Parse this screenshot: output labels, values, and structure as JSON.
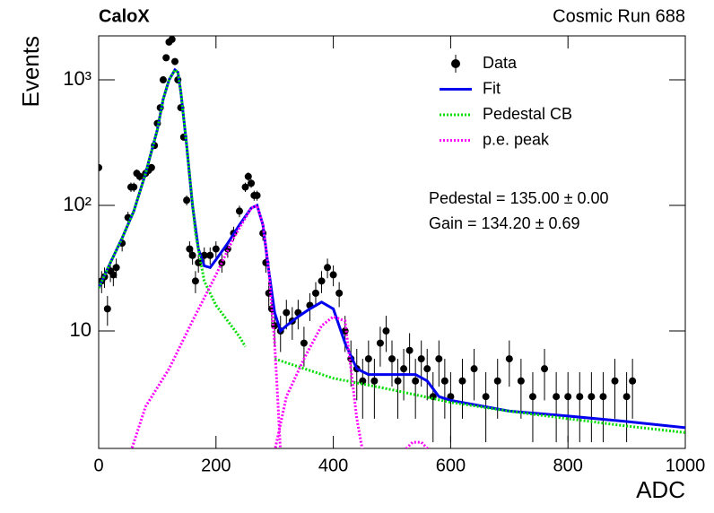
{
  "chart_data": {
    "type": "scatter",
    "title": "CaloX",
    "subtitle": "Cosmic Run 688",
    "x_label": "ADC",
    "y_label": "Events",
    "annotations": [
      "Pedestal = 135.00 ± 0.00",
      "Gain = 134.20 ± 0.69"
    ],
    "xlim": [
      0,
      1000
    ],
    "xticks": [
      0,
      200,
      400,
      600,
      800,
      1000
    ],
    "ylim": [
      1.16,
      2240
    ],
    "log_y": true,
    "yticks": [
      10,
      {
        "value": 100,
        "label": "10²"
      },
      {
        "value": 1000,
        "label": "10³"
      }
    ],
    "legend": "upper right",
    "series": [
      {
        "name": "Data",
        "type": "errorbar",
        "color": "#000000",
        "x": [
          0,
          5,
          10,
          15,
          20,
          25,
          30,
          40,
          50,
          55,
          60,
          65,
          70,
          80,
          85,
          90,
          95,
          100,
          105,
          110,
          115,
          120,
          125,
          130,
          135,
          140,
          145,
          150,
          155,
          160,
          165,
          170,
          180,
          190,
          200,
          210,
          220,
          230,
          240,
          250,
          255,
          260,
          265,
          270,
          280,
          285,
          290,
          295,
          300,
          310,
          320,
          330,
          340,
          350,
          360,
          370,
          380,
          390,
          400,
          410,
          420,
          430,
          440,
          450,
          460,
          470,
          480,
          490,
          500,
          510,
          520,
          530,
          540,
          550,
          560,
          570,
          580,
          590,
          600,
          620,
          640,
          660,
          680,
          700,
          720,
          740,
          760,
          780,
          800,
          820,
          840,
          860,
          880,
          900,
          910
        ],
        "values": [
          200,
          25,
          27,
          15,
          30,
          28,
          32,
          50,
          80,
          140,
          140,
          180,
          170,
          180,
          190,
          200,
          300,
          450,
          600,
          1000,
          1500,
          2000,
          2100,
          1400,
          1000,
          600,
          350,
          110,
          45,
          40,
          25,
          35,
          40,
          40,
          45,
          35,
          45,
          60,
          90,
          140,
          170,
          150,
          120,
          120,
          60,
          35,
          20,
          15,
          11,
          10,
          14,
          12,
          14,
          8,
          16,
          20,
          25,
          32,
          28,
          20,
          10,
          6,
          5,
          4,
          6,
          4,
          8,
          10,
          6,
          4,
          5,
          7,
          4,
          6,
          5,
          3,
          6,
          4,
          3,
          4,
          5,
          3,
          4,
          6,
          4,
          3,
          5,
          3,
          3,
          3,
          3,
          3,
          4,
          3,
          4
        ],
        "errors": [
          14,
          5,
          5,
          4,
          5.5,
          5.3,
          5.7,
          7,
          9,
          12,
          12,
          13,
          13,
          13,
          14,
          14,
          17,
          21,
          24,
          32,
          39,
          45,
          46,
          37,
          32,
          24,
          19,
          10,
          6.7,
          6.3,
          5,
          5.9,
          6.3,
          6.3,
          6.7,
          5.9,
          6.7,
          7.7,
          9.5,
          12,
          13,
          12,
          11,
          11,
          7.7,
          5.9,
          4.5,
          3.9,
          3.3,
          3.2,
          3.7,
          3.5,
          3.7,
          2.8,
          4,
          4.5,
          5,
          5.7,
          5.3,
          4.5,
          3.2,
          2.4,
          2.2,
          2,
          2.4,
          2,
          2.8,
          3.2,
          2.4,
          2,
          2.2,
          2.6,
          2,
          2.4,
          2.2,
          1.7,
          2.4,
          2,
          1.7,
          2,
          2.2,
          1.7,
          2,
          2.4,
          2,
          1.7,
          2.2,
          1.7,
          1.7,
          1.7,
          1.7,
          1.7,
          2,
          1.7,
          2
        ]
      },
      {
        "name": "Fit",
        "type": "line",
        "color": "#0000ee",
        "dash": "solid",
        "x": [
          0,
          20,
          40,
          60,
          80,
          100,
          110,
          120,
          130,
          135,
          140,
          150,
          160,
          170,
          180,
          190,
          200,
          220,
          240,
          260,
          270,
          280,
          290,
          300,
          310,
          320,
          340,
          360,
          380,
          400,
          420,
          440,
          460,
          500,
          540,
          560,
          580,
          600,
          700,
          800,
          900,
          1000
        ],
        "values": [
          22,
          35,
          55,
          90,
          180,
          400,
          700,
          1000,
          1200,
          1150,
          800,
          300,
          100,
          45,
          33,
          32,
          37,
          50,
          70,
          95,
          100,
          70,
          30,
          14,
          10,
          11,
          13,
          15,
          17,
          15,
          8,
          5,
          4.5,
          4.5,
          4.5,
          4,
          3,
          2.8,
          2.3,
          2.1,
          1.9,
          1.7
        ]
      },
      {
        "name": "Pedestal CB",
        "type": "line",
        "color": "#00dd00",
        "dash": "dotted",
        "x": [
          0,
          20,
          40,
          60,
          80,
          100,
          110,
          120,
          130,
          135,
          140,
          150,
          165,
          180,
          200,
          220,
          240,
          250,
          270,
          300,
          400,
          500,
          600,
          700,
          800,
          900,
          1000
        ],
        "values": [
          22,
          35,
          55,
          90,
          180,
          400,
          700,
          1000,
          1200,
          1150,
          800,
          300,
          60,
          25,
          16,
          12,
          9,
          7.5,
          null,
          6,
          4.2,
          3.4,
          2.7,
          2.3,
          2.0,
          1.75,
          1.55
        ]
      },
      {
        "name": "p.e. peak",
        "type": "line",
        "color": "#ff00ff",
        "dash": "dotted",
        "x": [
          55,
          80,
          120,
          160,
          200,
          230,
          260,
          270,
          280,
          290,
          300,
          305,
          310,
          275,
          300,
          320,
          350,
          380,
          400,
          420,
          430,
          440,
          450,
          505,
          520,
          535,
          550,
          565
        ],
        "values": [
          1.1,
          2.5,
          5,
          12,
          28,
          55,
          95,
          100,
          70,
          30,
          8,
          3,
          1.1,
          null,
          1.1,
          3,
          6,
          11,
          13,
          12,
          5,
          2,
          1.1,
          null,
          1.1,
          1.3,
          1.3,
          1.1
        ]
      }
    ]
  }
}
